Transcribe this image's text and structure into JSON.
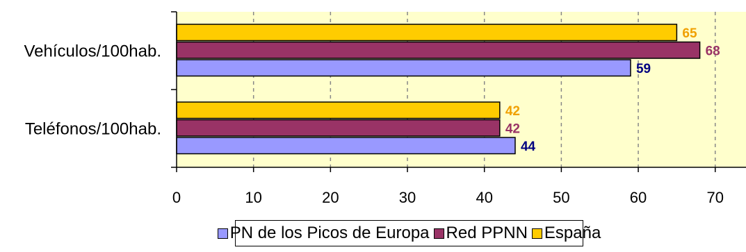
{
  "chart_data": {
    "type": "bar",
    "orientation": "horizontal",
    "categories": [
      "Vehículos/100hab.",
      "Teléfonos/100hab."
    ],
    "series": [
      {
        "name": "PN de los Picos de Europa",
        "values": [
          59,
          44
        ],
        "color": "#9999ff",
        "label_color": "#000080"
      },
      {
        "name": "Red PPNN",
        "values": [
          68,
          42
        ],
        "color": "#993366",
        "label_color": "#993366"
      },
      {
        "name": "España",
        "values": [
          65,
          42
        ],
        "color": "#ffcc00",
        "label_color": "#f0a000"
      }
    ],
    "data_labels": true,
    "xlim": [
      0,
      74
    ],
    "x_ticks": [
      "0",
      "10",
      "20",
      "30",
      "40",
      "50",
      "60",
      "70"
    ],
    "grid": "vertical-dashed",
    "plot_background": "#ffffcc",
    "legend_position": "bottom"
  }
}
